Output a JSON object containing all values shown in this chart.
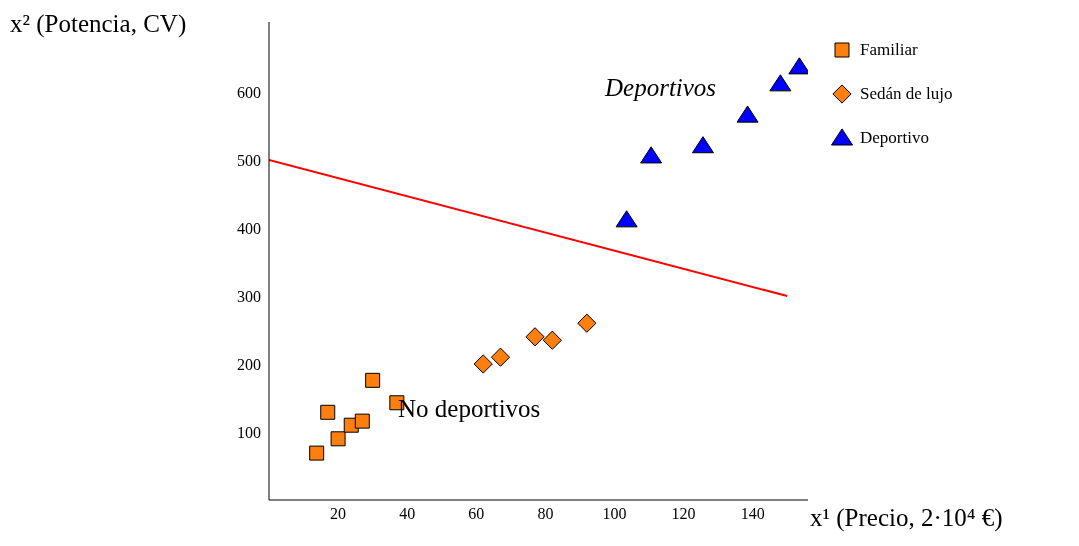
{
  "chart_data": {
    "type": "scatter",
    "xlabel": "x¹ (Precio, 2·10⁴ €)",
    "ylabel": "x² (Potencia, CV)",
    "xlim": [
      0,
      156
    ],
    "ylim": [
      0,
      703
    ],
    "xticks": [
      20,
      40,
      60,
      80,
      100,
      120,
      140
    ],
    "yticks": [
      100,
      200,
      300,
      400,
      500,
      600
    ],
    "grid": false,
    "legend": "top right",
    "series": [
      {
        "name": "Familiar",
        "color": "#ff7f0e",
        "marker": "square",
        "x": [
          13.8,
          17,
          20,
          23.8,
          27,
          30,
          37
        ],
        "values": [
          69,
          129,
          90,
          110,
          116,
          176,
          143
        ]
      },
      {
        "name": "Sedán de lujo",
        "color": "#ff7f0e",
        "marker": "diamond",
        "x": [
          62,
          67,
          77,
          82,
          92
        ],
        "values": [
          200,
          210,
          240,
          235,
          260
        ]
      },
      {
        "name": "Deportivo",
        "color": "#0000ff",
        "marker": "triangle",
        "x": [
          103.5,
          110.6,
          125.6,
          138.5,
          148,
          153.5
        ],
        "values": [
          412,
          506,
          521,
          566,
          612,
          637
        ]
      },
      {
        "type": "line",
        "color": "#ff0000",
        "marker": "none",
        "x": [
          0,
          150
        ],
        "values": [
          500,
          300
        ]
      }
    ],
    "annotations": [
      "Deportivos",
      "No deportivos"
    ]
  }
}
